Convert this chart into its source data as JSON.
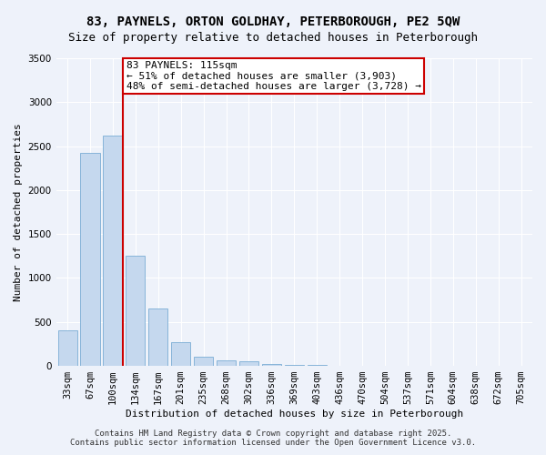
{
  "title1": "83, PAYNELS, ORTON GOLDHAY, PETERBOROUGH, PE2 5QW",
  "title2": "Size of property relative to detached houses in Peterborough",
  "xlabel": "Distribution of detached houses by size in Peterborough",
  "ylabel": "Number of detached properties",
  "bar_color": "#c5d8ee",
  "bar_edge_color": "#7aadd4",
  "background_color": "#eef2fa",
  "grid_color": "#ffffff",
  "categories": [
    "33sqm",
    "67sqm",
    "100sqm",
    "134sqm",
    "167sqm",
    "201sqm",
    "235sqm",
    "268sqm",
    "302sqm",
    "336sqm",
    "369sqm",
    "403sqm",
    "436sqm",
    "470sqm",
    "504sqm",
    "537sqm",
    "571sqm",
    "604sqm",
    "638sqm",
    "672sqm",
    "705sqm"
  ],
  "bar_heights": [
    400,
    2420,
    2620,
    1250,
    650,
    270,
    100,
    60,
    50,
    20,
    10,
    8,
    5,
    4,
    3,
    2,
    1,
    1,
    1,
    0,
    0
  ],
  "ylim": [
    0,
    3500
  ],
  "yticks": [
    0,
    500,
    1000,
    1500,
    2000,
    2500,
    3000,
    3500
  ],
  "annotation_text": "83 PAYNELS: 115sqm\n← 51% of detached houses are smaller (3,903)\n48% of semi-detached houses are larger (3,728) →",
  "annotation_box_color": "#ffffff",
  "annotation_box_edge": "#cc0000",
  "red_line_color": "#cc0000",
  "footer1": "Contains HM Land Registry data © Crown copyright and database right 2025.",
  "footer2": "Contains public sector information licensed under the Open Government Licence v3.0.",
  "title_fontsize": 10,
  "subtitle_fontsize": 9,
  "axis_label_fontsize": 8,
  "tick_fontsize": 7.5,
  "footer_fontsize": 6.5,
  "annotation_fontsize": 8
}
